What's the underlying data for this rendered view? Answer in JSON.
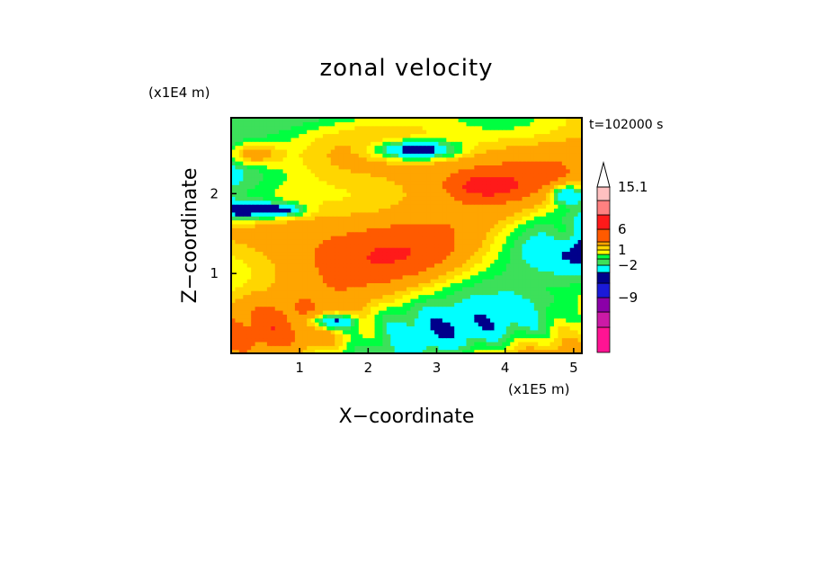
{
  "chart_data": {
    "type": "heatmap",
    "title": "zonal velocity",
    "xlabel": "X−coordinate",
    "ylabel": "Z−coordinate",
    "x_scale_note": "(x1E5 m)",
    "y_scale_note": "(x1E4 m)",
    "time_label": "t=102000 s",
    "xlim": [
      0,
      5.12
    ],
    "ylim": [
      0,
      2.95
    ],
    "x_ticks": [
      1,
      2,
      3,
      4,
      5
    ],
    "y_ticks": [
      1,
      2
    ],
    "x_tick_labels": [
      "1",
      "2",
      "3",
      "4",
      "5"
    ],
    "y_tick_labels": [
      "1",
      "2"
    ],
    "colorbar": {
      "levels": [
        -15,
        -12,
        -9,
        -6,
        -4,
        -2,
        -1,
        0,
        1,
        2,
        4,
        6,
        9,
        12,
        15.1
      ],
      "colors": [
        "#ff1493",
        "#cc1aa6",
        "#8b00a8",
        "#1a1ad9",
        "#00008b",
        "#00ffff",
        "#3de05a",
        "#00ff40",
        "#ffff00",
        "#ffd600",
        "#ffa500",
        "#ff5a00",
        "#ff1a1a",
        "#ff8080",
        "#ffc0c0"
      ],
      "labels": [
        "15.1",
        "6",
        "1",
        "−2",
        "−9"
      ],
      "label_values": [
        15.1,
        6,
        1,
        -2,
        -9
      ],
      "extend_top": true,
      "extend_top_color": "#ffffff"
    },
    "grid": false
  }
}
